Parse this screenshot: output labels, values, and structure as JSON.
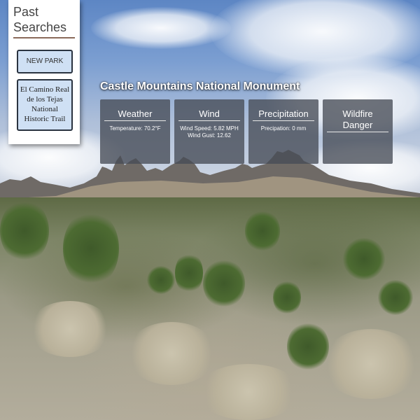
{
  "past_searches": {
    "title": "Past Searches",
    "new_park_label": "NEW PARK",
    "history": [
      "El Camino Real de los Tejas National Historic Trail"
    ]
  },
  "park": {
    "name": "Castle Mountains National Monument"
  },
  "cards": {
    "weather": {
      "title": "Weather",
      "temperature": "Temperature: 70.2°F"
    },
    "wind": {
      "title": "Wind",
      "speed": "Wind Speed: 5.82 MPH",
      "gust": "Wind Gust: 12.62"
    },
    "precipitation": {
      "title": "Precipitation",
      "amount": "Precipation: 0 mm"
    },
    "wildfire": {
      "title": "Wildfire Danger"
    }
  },
  "colors": {
    "card_bg": "#464c56",
    "button_bg": "#cfe0f4",
    "button_border": "#2a3340",
    "title_underline": "#8a6a5a"
  },
  "background": "desert-landscape-photo"
}
